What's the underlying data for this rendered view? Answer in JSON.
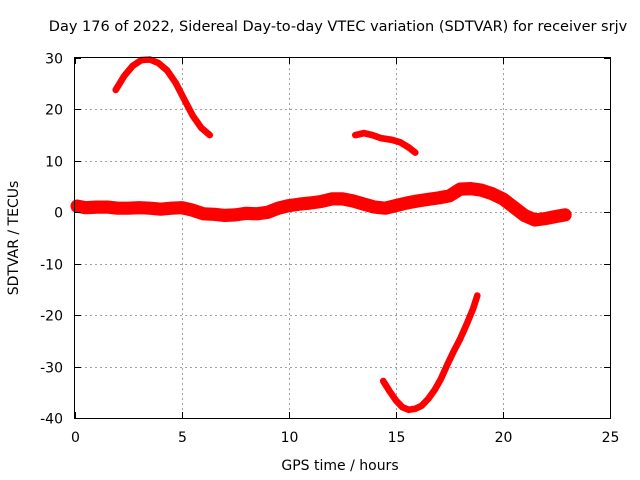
{
  "chart_data": {
    "type": "line",
    "title": "Day 176 of 2022, Sidereal Day-to-day VTEC variation (SDTVAR) for receiver srjv",
    "xlabel": "GPS time / hours",
    "ylabel": "SDTVAR / TECUs",
    "xlim": [
      0,
      25
    ],
    "ylim": [
      -40,
      30
    ],
    "x_ticks": [
      "0",
      "5",
      "10",
      "15",
      "20",
      "25"
    ],
    "y_ticks": [
      "-40",
      "-30",
      "-20",
      "-10",
      "0",
      "10",
      "20",
      "30"
    ],
    "x_tick_values": [
      0,
      5,
      10,
      15,
      20,
      25
    ],
    "y_tick_values": [
      -40,
      -30,
      -20,
      -10,
      0,
      10,
      20,
      30
    ],
    "grid": true,
    "series_color": "#ff0000",
    "series": [
      {
        "name": "main band",
        "band_width_tecu": 1.6,
        "points": [
          [
            0.1,
            1.2
          ],
          [
            0.5,
            0.9
          ],
          [
            1.0,
            1.0
          ],
          [
            1.5,
            1.0
          ],
          [
            2.0,
            0.8
          ],
          [
            2.5,
            0.8
          ],
          [
            3.0,
            0.9
          ],
          [
            3.5,
            0.8
          ],
          [
            4.0,
            0.6
          ],
          [
            4.5,
            0.8
          ],
          [
            5.0,
            0.9
          ],
          [
            5.5,
            0.4
          ],
          [
            6.0,
            -0.3
          ],
          [
            6.5,
            -0.4
          ],
          [
            7.0,
            -0.6
          ],
          [
            7.5,
            -0.5
          ],
          [
            8.0,
            -0.2
          ],
          [
            8.5,
            -0.3
          ],
          [
            9.0,
            0.0
          ],
          [
            9.5,
            0.8
          ],
          [
            10.0,
            1.3
          ],
          [
            10.5,
            1.6
          ],
          [
            11.0,
            1.8
          ],
          [
            11.5,
            2.1
          ],
          [
            12.0,
            2.6
          ],
          [
            12.5,
            2.6
          ],
          [
            13.0,
            2.2
          ],
          [
            13.5,
            1.6
          ],
          [
            14.0,
            1.0
          ],
          [
            14.5,
            0.8
          ],
          [
            15.0,
            1.3
          ],
          [
            15.5,
            1.8
          ],
          [
            16.0,
            2.2
          ],
          [
            16.5,
            2.5
          ],
          [
            17.0,
            2.8
          ],
          [
            17.5,
            3.2
          ],
          [
            18.0,
            4.5
          ],
          [
            18.5,
            4.6
          ],
          [
            19.0,
            4.3
          ],
          [
            19.5,
            3.6
          ],
          [
            20.0,
            2.6
          ],
          [
            20.5,
            1.0
          ],
          [
            21.0,
            -0.6
          ],
          [
            21.5,
            -1.5
          ],
          [
            22.0,
            -1.2
          ],
          [
            22.5,
            -0.8
          ],
          [
            22.9,
            -0.5
          ]
        ]
      },
      {
        "name": "arc A",
        "band_width_tecu": 0.8,
        "points": [
          [
            1.9,
            23.8
          ],
          [
            2.3,
            26.5
          ],
          [
            2.7,
            28.5
          ],
          [
            3.1,
            29.6
          ],
          [
            3.5,
            29.7
          ],
          [
            3.9,
            29.0
          ],
          [
            4.3,
            27.6
          ],
          [
            4.7,
            25.2
          ],
          [
            5.1,
            22.0
          ],
          [
            5.5,
            18.8
          ],
          [
            5.9,
            16.4
          ],
          [
            6.3,
            15.0
          ]
        ]
      },
      {
        "name": "arc B",
        "band_width_tecu": 0.8,
        "points": [
          [
            13.1,
            15.0
          ],
          [
            13.5,
            15.4
          ],
          [
            13.9,
            15.0
          ],
          [
            14.3,
            14.4
          ],
          [
            14.8,
            14.1
          ],
          [
            15.2,
            13.6
          ],
          [
            15.6,
            12.6
          ],
          [
            15.9,
            11.6
          ]
        ]
      },
      {
        "name": "arc C",
        "band_width_tecu": 0.8,
        "points": [
          [
            14.4,
            -32.8
          ],
          [
            14.7,
            -34.8
          ],
          [
            15.0,
            -36.6
          ],
          [
            15.3,
            -37.9
          ],
          [
            15.6,
            -38.4
          ],
          [
            15.9,
            -38.2
          ],
          [
            16.2,
            -37.6
          ],
          [
            16.5,
            -36.3
          ],
          [
            16.8,
            -34.6
          ],
          [
            17.1,
            -32.4
          ],
          [
            17.4,
            -29.6
          ],
          [
            17.7,
            -27.0
          ],
          [
            18.0,
            -24.6
          ],
          [
            18.3,
            -21.8
          ],
          [
            18.6,
            -18.8
          ],
          [
            18.8,
            -16.2
          ]
        ]
      }
    ]
  }
}
